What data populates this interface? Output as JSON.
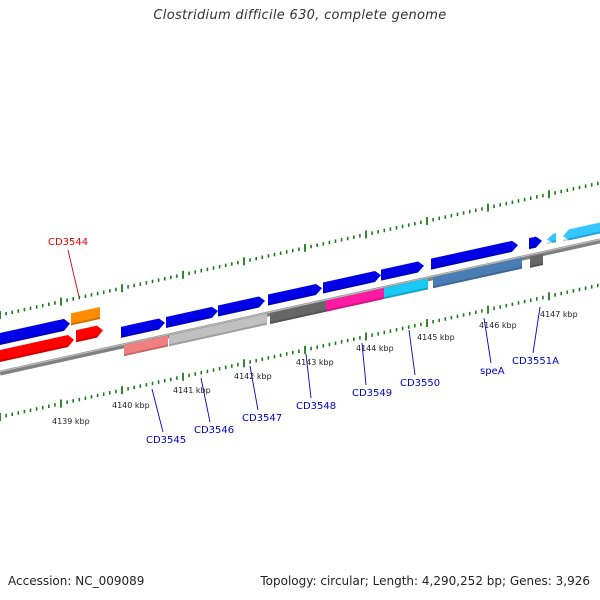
{
  "title": "Clostridium difficile 630, complete genome",
  "footer": {
    "accession": "Accession: NC_009089",
    "summary": "Topology: circular; Length: 4,290,252 bp; Genes: 3,926"
  },
  "colors": {
    "background": "#ffffff",
    "backbone": "#888888",
    "tick": "#1a7a1a",
    "label_blue": "#0000cc",
    "label_red": "#dd0000"
  },
  "scale_labels": [
    "4139 kbp",
    "4140 kbp",
    "4141 kbp",
    "4142 kbp",
    "4143 kbp",
    "4144 kbp",
    "4145 kbp",
    "4146 kbp",
    "4147 kbp"
  ],
  "genes": [
    {
      "label": "CD3544",
      "color_key": "red"
    },
    {
      "label": "CD3545",
      "color_key": "blue"
    },
    {
      "label": "CD3546",
      "color_key": "blue"
    },
    {
      "label": "CD3547",
      "color_key": "blue"
    },
    {
      "label": "CD3548",
      "color_key": "blue"
    },
    {
      "label": "CD3549",
      "color_key": "blue"
    },
    {
      "label": "CD3550",
      "color_key": "blue"
    },
    {
      "label": "speA",
      "color_key": "blue"
    },
    {
      "label": "CD3551A",
      "color_key": "blue"
    }
  ]
}
